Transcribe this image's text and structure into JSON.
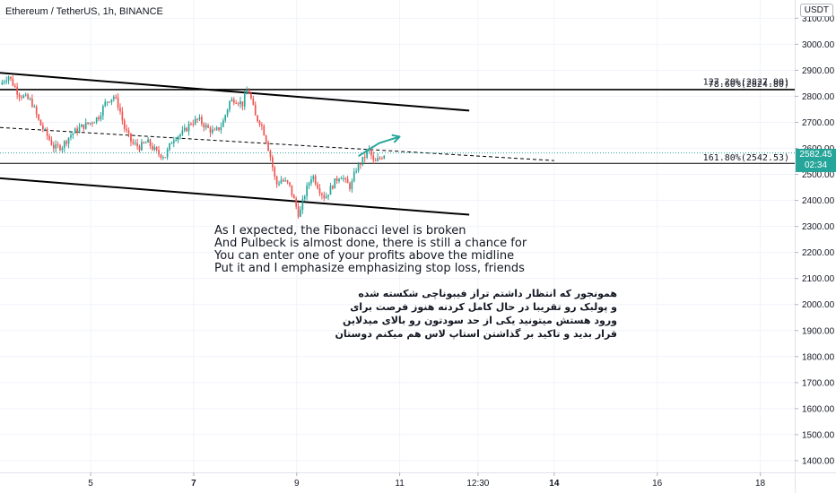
{
  "header": {
    "symbol": "Ethereum / TetherUS, 1h, BINANCE",
    "currency": "USDT"
  },
  "price_badge": {
    "price": "2582.45",
    "countdown": "02:34"
  },
  "notes": {
    "english": [
      "As I expected, the Fibonacci level is broken",
      "And Pulbeck is almost done, there is still a chance for",
      "You can enter one of your profits above the midline",
      "Put it and I emphasize emphasizing stop loss, friends"
    ],
    "persian": [
      "همونجور که انتظار داشتم تراز فیبوناچی شکسته شده",
      "و پولبک رو تقریبا در حال کامل کردنه هنوز فرصت برای",
      "ورود هستش میتونید یکی از حد سودتون رو بالای میدلاین",
      "قرار بدید و تاکید بر گذاشتن استاپ لاس هم میکنم دوستان"
    ]
  },
  "colors": {
    "up": "#26a69a",
    "down": "#ef5350",
    "grid": "#f0f3fa",
    "line": "#000000",
    "axis_text": "#131722"
  },
  "chart_data": {
    "type": "candlestick",
    "xlabel": "",
    "ylabel": "",
    "y_ticks": [
      3100,
      3000,
      2900,
      2800,
      2700,
      2600,
      2500,
      2400,
      2300,
      2200,
      2100,
      2000,
      1900,
      1800,
      1700,
      1600,
      1500,
      1400
    ],
    "y_tick_labels": [
      "3100.00",
      "3000.00",
      "2900.00",
      "2800.00",
      "2700.00",
      "2600.00",
      "2500.00",
      "2400.00",
      "2300.00",
      "2200.00",
      "2100.00",
      "2000.00",
      "1900.00",
      "1800.00",
      "1700.00",
      "1600.00",
      "1500.00",
      "1400.00"
    ],
    "ylim": [
      1355,
      3170
    ],
    "x_range_days": [
      3.24,
      18.67
    ],
    "x_ticks": [
      {
        "label": "5",
        "day": 5.0,
        "bold": false
      },
      {
        "label": "7",
        "day": 7.0,
        "bold": true
      },
      {
        "label": "9",
        "day": 9.0,
        "bold": false
      },
      {
        "label": "11",
        "day": 11.0,
        "bold": false
      },
      {
        "label": "12:30",
        "day": 12.52,
        "bold": false
      },
      {
        "label": "14",
        "day": 14.0,
        "bold": true
      },
      {
        "label": "16",
        "day": 16.0,
        "bold": false
      },
      {
        "label": "18",
        "day": 18.0,
        "bold": false
      }
    ],
    "price_path": [
      [
        3.24,
        2845
      ],
      [
        3.4,
        2880
      ],
      [
        3.6,
        2810
      ],
      [
        3.85,
        2780
      ],
      [
        4.0,
        2700
      ],
      [
        4.15,
        2650
      ],
      [
        4.3,
        2600
      ],
      [
        4.45,
        2610
      ],
      [
        4.6,
        2650
      ],
      [
        4.8,
        2680
      ],
      [
        5.0,
        2700
      ],
      [
        5.15,
        2720
      ],
      [
        5.3,
        2780
      ],
      [
        5.45,
        2800
      ],
      [
        5.55,
        2760
      ],
      [
        5.65,
        2680
      ],
      [
        5.8,
        2620
      ],
      [
        5.95,
        2605
      ],
      [
        6.1,
        2625
      ],
      [
        6.3,
        2580
      ],
      [
        6.45,
        2570
      ],
      [
        6.6,
        2640
      ],
      [
        6.8,
        2660
      ],
      [
        6.95,
        2700
      ],
      [
        7.1,
        2710
      ],
      [
        7.25,
        2680
      ],
      [
        7.4,
        2660
      ],
      [
        7.55,
        2690
      ],
      [
        7.7,
        2780
      ],
      [
        7.8,
        2790
      ],
      [
        7.95,
        2770
      ],
      [
        8.05,
        2830
      ],
      [
        8.1,
        2800
      ],
      [
        8.2,
        2720
      ],
      [
        8.3,
        2700
      ],
      [
        8.4,
        2640
      ],
      [
        8.5,
        2560
      ],
      [
        8.6,
        2460
      ],
      [
        8.7,
        2480
      ],
      [
        8.85,
        2460
      ],
      [
        8.95,
        2400
      ],
      [
        9.05,
        2340
      ],
      [
        9.15,
        2420
      ],
      [
        9.3,
        2500
      ],
      [
        9.45,
        2440
      ],
      [
        9.55,
        2410
      ],
      [
        9.7,
        2460
      ],
      [
        9.85,
        2500
      ],
      [
        9.95,
        2470
      ],
      [
        10.05,
        2450
      ],
      [
        10.15,
        2520
      ],
      [
        10.3,
        2560
      ],
      [
        10.4,
        2600
      ],
      [
        10.5,
        2540
      ],
      [
        10.6,
        2560
      ],
      [
        10.72,
        2582.45
      ]
    ],
    "trendlines": [
      {
        "name": "upper-channel",
        "from": [
          3.24,
          2890
        ],
        "to": [
          12.35,
          2745
        ]
      },
      {
        "name": "lower-channel",
        "from": [
          3.24,
          2485
        ],
        "to": [
          12.35,
          2345
        ]
      },
      {
        "name": "midline",
        "from": [
          3.24,
          2680
        ],
        "to": [
          14.0,
          2553
        ],
        "dashed": true
      }
    ],
    "fib_levels": [
      {
        "label": "127.20%(2827.00)",
        "value": 2827.0
      },
      {
        "label": "78.60%(2824.80)",
        "value": 2824.8
      },
      {
        "label": "161.80%(2542.53)",
        "value": 2542.53
      }
    ],
    "projection_arrow": {
      "from": [
        10.2,
        2570
      ],
      "mid": [
        10.6,
        2620
      ],
      "to": [
        11.0,
        2645
      ]
    }
  }
}
